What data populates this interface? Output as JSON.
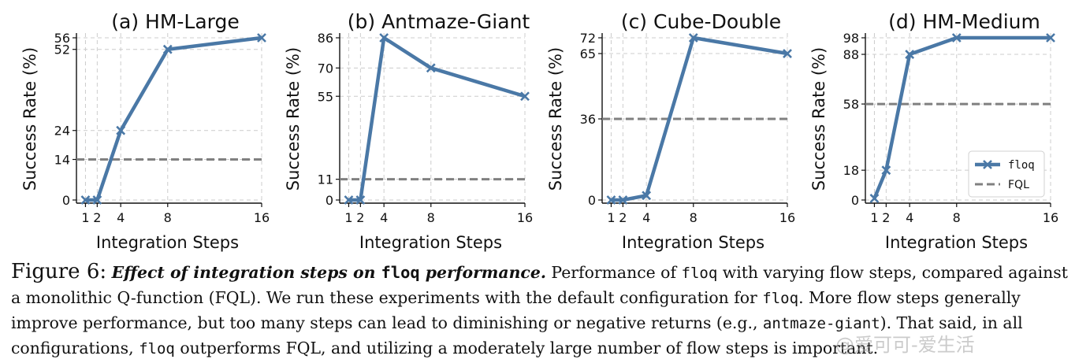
{
  "colors": {
    "floq": "#4a78a6",
    "fql": "#808080",
    "grid": "#cccccc"
  },
  "legend": {
    "floq": "floq",
    "fql": "FQL"
  },
  "chart_data": [
    {
      "type": "line",
      "title": "(a) HM-Large",
      "xlabel": "Integration Steps",
      "ylabel": "Success Rate (%)",
      "x": [
        1,
        2,
        4,
        8,
        16
      ],
      "xticks": [
        1,
        2,
        4,
        8,
        16
      ],
      "yticks": [
        0,
        14,
        24,
        52,
        56
      ],
      "ylim": [
        0,
        56
      ],
      "series": [
        {
          "name": "floq",
          "values": [
            0,
            0,
            24,
            52,
            56
          ]
        },
        {
          "name": "FQL",
          "constant": 14
        }
      ]
    },
    {
      "type": "line",
      "title": "(b) Antmaze-Giant",
      "xlabel": "Integration Steps",
      "ylabel": "Success Rate (%)",
      "x": [
        1,
        2,
        4,
        8,
        16
      ],
      "xticks": [
        1,
        2,
        4,
        8,
        16
      ],
      "yticks": [
        0,
        11,
        55,
        70,
        86
      ],
      "ylim": [
        0,
        86
      ],
      "series": [
        {
          "name": "floq",
          "values": [
            0,
            0,
            86,
            70,
            55
          ]
        },
        {
          "name": "FQL",
          "constant": 11
        }
      ]
    },
    {
      "type": "line",
      "title": "(c) Cube-Double",
      "xlabel": "Integration Steps",
      "ylabel": "Success Rate (%)",
      "x": [
        1,
        2,
        4,
        8,
        16
      ],
      "xticks": [
        1,
        2,
        4,
        8,
        16
      ],
      "yticks": [
        0,
        36,
        65,
        72
      ],
      "ylim": [
        0,
        72
      ],
      "series": [
        {
          "name": "floq",
          "values": [
            0,
            0,
            2,
            72,
            65
          ]
        },
        {
          "name": "FQL",
          "constant": 36
        }
      ]
    },
    {
      "type": "line",
      "title": "(d) HM-Medium",
      "xlabel": "Integration Steps",
      "ylabel": "Success Rate (%)",
      "x": [
        1,
        2,
        4,
        8,
        16
      ],
      "xticks": [
        1,
        2,
        4,
        8,
        16
      ],
      "yticks": [
        0,
        18,
        58,
        88,
        98
      ],
      "ylim": [
        0,
        98
      ],
      "legend": "lower right",
      "series": [
        {
          "name": "floq",
          "values": [
            1,
            18,
            88,
            98,
            98
          ]
        },
        {
          "name": "FQL",
          "constant": 58
        }
      ]
    }
  ],
  "caption": {
    "label": "Figure 6:",
    "lead_a": "Effect of integration steps on ",
    "lead_code": "floq",
    "lead_b": " performance.",
    "t1": " Performance of ",
    "c1": "floq",
    "t2": " with varying flow steps, compared against a monolithic Q-function (FQL). We run these experiments with the default configuration for ",
    "c2": "floq",
    "t3": ". More flow steps generally improve performance, but too many steps can lead to diminishing or negative returns (e.g., ",
    "c3": "antmaze-giant",
    "t4": "). That said, in all configurations, ",
    "c4": "floq",
    "t5": " outperforms FQL, and utilizing a moderately large number of flow steps is important."
  },
  "watermark": "@爱可可-爱生活"
}
